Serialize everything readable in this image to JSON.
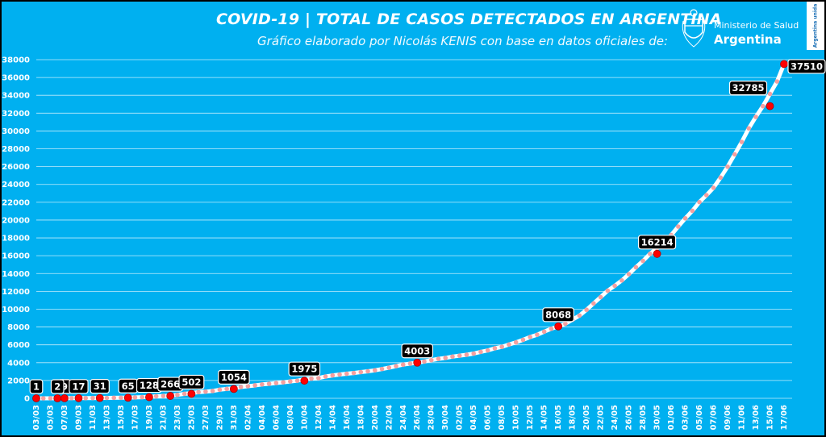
{
  "header": {
    "title": "COVID-19  |  TOTAL DE CASOS DETECTADOS EN ARGENTINA",
    "subtitle": "Gráfico elaborado por Nicolás KENIS con base en datos oficiales de:",
    "logo_ministry": "Ministerio de Salud",
    "logo_country": "Argentina",
    "badge_text": "Argentina unida"
  },
  "colors": {
    "background": "#00B0F0",
    "frame": "#000000",
    "line": "#FFFFFF",
    "markers": "#F4A0A0",
    "highlight": "#FF0000",
    "label_bg": "#000000",
    "text": "#FFFFFF"
  },
  "chart_data": {
    "type": "line",
    "title": "COVID-19  |  TOTAL DE CASOS DETECTADOS EN ARGENTINA",
    "xlabel": "",
    "ylabel": "",
    "ylim": [
      0,
      38000
    ],
    "y_ticks": [
      0,
      2000,
      4000,
      6000,
      8000,
      10000,
      12000,
      14000,
      16000,
      18000,
      20000,
      22000,
      24000,
      26000,
      28000,
      30000,
      32000,
      34000,
      36000,
      38000
    ],
    "x_tick_labels": [
      "03/03",
      "05/03",
      "07/03",
      "09/03",
      "11/03",
      "13/03",
      "15/03",
      "17/03",
      "19/03",
      "21/03",
      "23/03",
      "25/03",
      "27/03",
      "29/03",
      "31/03",
      "02/04",
      "04/04",
      "06/04",
      "08/04",
      "10/04",
      "12/04",
      "14/04",
      "16/04",
      "18/04",
      "20/04",
      "22/04",
      "24/04",
      "26/04",
      "28/04",
      "30/04",
      "02/05",
      "04/05",
      "06/05",
      "08/05",
      "10/05",
      "12/05",
      "14/05",
      "16/05",
      "18/05",
      "20/05",
      "22/05",
      "24/05",
      "26/05",
      "28/05",
      "30/05",
      "01/06",
      "03/06",
      "05/06",
      "07/06",
      "09/06",
      "11/06",
      "13/06",
      "15/06",
      "17/06"
    ],
    "x_day_offset_of_first_tick": 0,
    "grid": true,
    "legend": "none",
    "annotations": [
      {
        "date": "03/03",
        "value": 1,
        "label": "1"
      },
      {
        "date": "07/03",
        "value": 9,
        "label": "9"
      },
      {
        "date": "06/03",
        "value": 2,
        "label": "2"
      },
      {
        "date": "09/03",
        "value": 17,
        "label": "17"
      },
      {
        "date": "12/03",
        "value": 31,
        "label": "31"
      },
      {
        "date": "16/03",
        "value": 65,
        "label": "65"
      },
      {
        "date": "19/03",
        "value": 128,
        "label": "128"
      },
      {
        "date": "22/03",
        "value": 266,
        "label": "266"
      },
      {
        "date": "25/03",
        "value": 502,
        "label": "502"
      },
      {
        "date": "31/03",
        "value": 1054,
        "label": "1054"
      },
      {
        "date": "10/04",
        "value": 1975,
        "label": "1975"
      },
      {
        "date": "26/04",
        "value": 4003,
        "label": "4003"
      },
      {
        "date": "16/05",
        "value": 8068,
        "label": "8068"
      },
      {
        "date": "30/05",
        "value": 16214,
        "label": "16214"
      },
      {
        "date": "15/06",
        "value": 32785,
        "label": "32785"
      },
      {
        "date": "18/06",
        "value": 37510,
        "label": "37510"
      }
    ],
    "series": [
      {
        "values": [
          1,
          1,
          2,
          9,
          12,
          17,
          19,
          21,
          31,
          34,
          45,
          56,
          65,
          79,
          97,
          128,
          158,
          225,
          266,
          301,
          387,
          502,
          589,
          690,
          745,
          820,
          966,
          1054,
          1133,
          1265,
          1353,
          1451,
          1554,
          1628,
          1715,
          1795,
          1894,
          1975,
          2142,
          2208,
          2277,
          2443,
          2571,
          2669,
          2758,
          2839,
          2941,
          3031,
          3144,
          3288,
          3435,
          3607,
          3780,
          3892,
          4003,
          4127,
          4285,
          4428,
          4532,
          4681,
          4783,
          4887,
          5020,
          5208,
          5371,
          5611,
          5776,
          6034,
          6278,
          6563,
          6879,
          7134,
          7479,
          7805,
          8068,
          8371,
          8809,
          9283,
          9931,
          10649,
          11353,
          12076,
          12628,
          13228,
          13933,
          14702,
          15419,
          16214,
          16851,
          17415,
          18319,
          19268,
          20197,
          21037,
          22020,
          22794,
          23620,
          24761,
          25987,
          27373,
          28764,
          30295,
          31577,
          32785,
          34159,
          35552,
          37510
        ]
      }
    ]
  }
}
